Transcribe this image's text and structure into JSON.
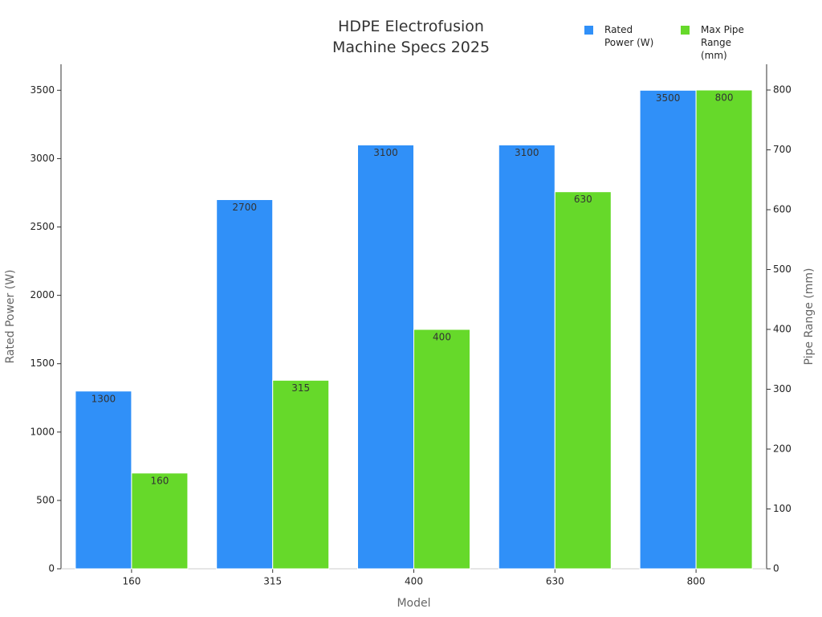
{
  "chart_data": {
    "type": "bar",
    "title": "HDPE Electrofusion\nMachine Specs 2025",
    "x_label": "Model",
    "y_label": "Rated Power (W)",
    "y2_label": "Pipe Range (mm)",
    "categories": [
      "160",
      "315",
      "400",
      "630",
      "800"
    ],
    "series": [
      {
        "name": "Rated Power (W)",
        "color": "#3090f8",
        "values": [
          1300,
          2700,
          3100,
          3100,
          3500
        ]
      },
      {
        "name": "Max Pipe Range (mm)",
        "color": "#66d92a",
        "axis": "y2",
        "values": [
          160,
          315,
          400,
          630,
          800
        ]
      }
    ],
    "ylim": [
      0,
      3690
    ],
    "yticks": [
      0,
      500,
      1000,
      1500,
      2000,
      2500,
      3000,
      3500
    ],
    "y2lim": [
      0,
      843
    ],
    "y2ticks": [
      0,
      100,
      200,
      300,
      400,
      500,
      600,
      700,
      800
    ],
    "legend": "top-right",
    "data_labels": true
  }
}
